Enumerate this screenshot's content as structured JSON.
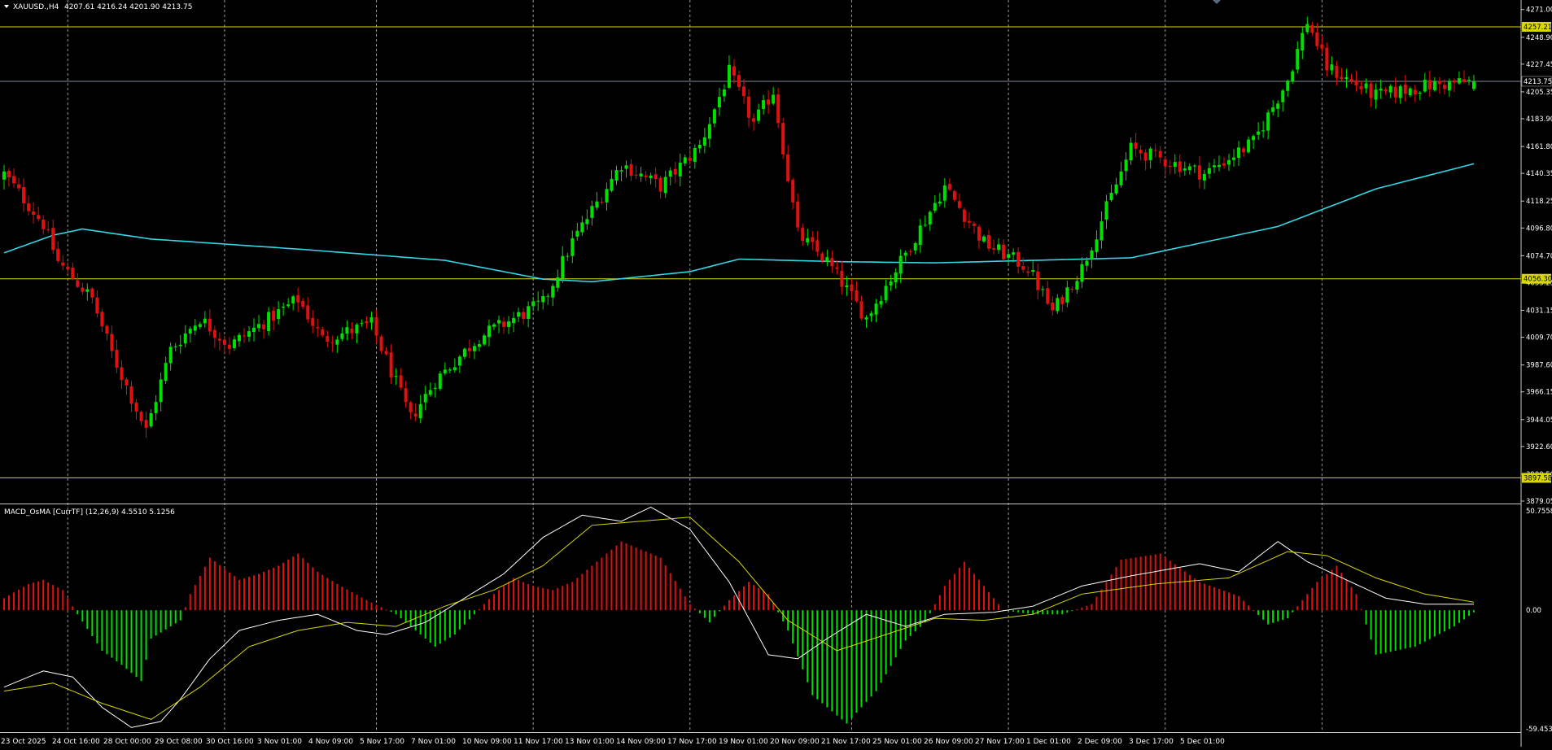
{
  "symbol_label": "XAUUSD.,H4",
  "ohlc_label": "4207.61 4216.24 4201.90 4213.75",
  "indicator_label": "MACD_OsMA [CurrTF] (12,26,9) 4.5510 5.1256",
  "colors": {
    "background": "#000000",
    "bull": "#00e000",
    "bear": "#e01010",
    "grid": "#9a9a9a",
    "moving_average": "#33d6e6",
    "level_line": "#d8d800",
    "bid_line": "#7f8a9c",
    "macd_line": "#ffffff",
    "signal_line": "#d8d800"
  },
  "chart_data": [
    {
      "type": "candlestick",
      "title": "XAUUSD.,H4",
      "y_ticks": [
        "4271.00",
        "4248.90",
        "4227.45",
        "4205.35",
        "4183.90",
        "4161.80",
        "4140.35",
        "4118.25",
        "4096.80",
        "4074.70",
        "4053.25",
        "4031.15",
        "4009.70",
        "3987.60",
        "3966.15",
        "3944.05",
        "3922.60",
        "3900.50",
        "3879.05"
      ],
      "ylim": [
        3879.05,
        4276.0
      ],
      "horizontal_levels": [
        {
          "label": "4257.21",
          "value": 4257.21
        },
        {
          "label": "4056.30",
          "value": 4056.3
        },
        {
          "label": "3897.58",
          "value": 3897.58
        }
      ],
      "current_price": {
        "label": "4213.75",
        "value": 4213.75
      },
      "moving_average_keypoints": [
        [
          0,
          4077
        ],
        [
          10,
          4091
        ],
        [
          16,
          4096
        ],
        [
          30,
          4088
        ],
        [
          60,
          4080
        ],
        [
          90,
          4071
        ],
        [
          110,
          4056
        ],
        [
          120,
          4054
        ],
        [
          140,
          4062
        ],
        [
          150,
          4072
        ],
        [
          170,
          4070
        ],
        [
          190,
          4069
        ],
        [
          210,
          4071
        ],
        [
          230,
          4073
        ],
        [
          260,
          4098
        ],
        [
          280,
          4128
        ],
        [
          300,
          4148
        ]
      ],
      "closes_keypoints": [
        [
          0,
          4140
        ],
        [
          8,
          4100
        ],
        [
          11,
          4070
        ],
        [
          18,
          4040
        ],
        [
          22,
          3997
        ],
        [
          29,
          3935
        ],
        [
          34,
          4000
        ],
        [
          40,
          4025
        ],
        [
          46,
          4003
        ],
        [
          60,
          4040
        ],
        [
          65,
          4008
        ],
        [
          75,
          4020
        ],
        [
          83,
          3945
        ],
        [
          88,
          3975
        ],
        [
          97,
          4010
        ],
        [
          110,
          4037
        ],
        [
          116,
          4086
        ],
        [
          126,
          4148
        ],
        [
          134,
          4130
        ],
        [
          142,
          4162
        ],
        [
          148,
          4221
        ],
        [
          153,
          4180
        ],
        [
          157,
          4206
        ],
        [
          162,
          4092
        ],
        [
          168,
          4070
        ],
        [
          176,
          4025
        ],
        [
          183,
          4070
        ],
        [
          192,
          4130
        ],
        [
          200,
          4085
        ],
        [
          209,
          4065
        ],
        [
          214,
          4030
        ],
        [
          220,
          4065
        ],
        [
          230,
          4160
        ],
        [
          245,
          4140
        ],
        [
          255,
          4165
        ],
        [
          262,
          4215
        ],
        [
          266,
          4262
        ],
        [
          270,
          4225
        ],
        [
          280,
          4202
        ],
        [
          290,
          4210
        ],
        [
          300,
          4213.75
        ]
      ],
      "x_tick_labels": [
        "23 Oct 2025",
        "24 Oct 16:00",
        "28 Oct 00:00",
        "29 Oct 08:00",
        "30 Oct 16:00",
        "3 Nov 01:00",
        "4 Nov 09:00",
        "5 Nov 17:00",
        "7 Nov 01:00",
        "10 Nov 09:00",
        "11 Nov 17:00",
        "13 Nov 01:00",
        "14 Nov 09:00",
        "17 Nov 17:00",
        "19 Nov 01:00",
        "20 Nov 09:00",
        "21 Nov 17:00",
        "25 Nov 01:00",
        "26 Nov 09:00",
        "27 Nov 17:00",
        "1 Dec 01:00",
        "2 Dec 09:00",
        "3 Dec 17:00",
        "5 Dec 01:00"
      ]
    },
    {
      "type": "macd-histogram",
      "title": "MACD_OsMA [CurrTF] (12,26,9)",
      "y_ticks": [
        "50.7558",
        "0.00",
        "-59.4533"
      ],
      "ylim": [
        -59.4533,
        50.7558
      ],
      "histogram_keypoints": [
        [
          0,
          6
        ],
        [
          5,
          13
        ],
        [
          8,
          15
        ],
        [
          12,
          10
        ],
        [
          15,
          -2
        ],
        [
          20,
          -20
        ],
        [
          24,
          -27
        ],
        [
          28,
          -35
        ],
        [
          30,
          -14
        ],
        [
          36,
          -5
        ],
        [
          38,
          8
        ],
        [
          42,
          26
        ],
        [
          48,
          15
        ],
        [
          52,
          18
        ],
        [
          56,
          22
        ],
        [
          60,
          28
        ],
        [
          64,
          19
        ],
        [
          68,
          13
        ],
        [
          74,
          5
        ],
        [
          80,
          -2
        ],
        [
          84,
          -10
        ],
        [
          88,
          -18
        ],
        [
          92,
          -12
        ],
        [
          96,
          -2
        ],
        [
          100,
          8
        ],
        [
          104,
          16
        ],
        [
          108,
          12
        ],
        [
          112,
          10
        ],
        [
          116,
          14
        ],
        [
          120,
          22
        ],
        [
          126,
          34
        ],
        [
          134,
          26
        ],
        [
          140,
          3
        ],
        [
          144,
          -6
        ],
        [
          148,
          5
        ],
        [
          152,
          14
        ],
        [
          156,
          8
        ],
        [
          160,
          -10
        ],
        [
          165,
          -42
        ],
        [
          172,
          -56
        ],
        [
          178,
          -40
        ],
        [
          184,
          -15
        ],
        [
          188,
          -6
        ],
        [
          192,
          12
        ],
        [
          196,
          24
        ],
        [
          200,
          12
        ],
        [
          204,
          0
        ],
        [
          210,
          -2
        ],
        [
          216,
          -2
        ],
        [
          222,
          3
        ],
        [
          228,
          25
        ],
        [
          236,
          28
        ],
        [
          244,
          14
        ],
        [
          252,
          7
        ],
        [
          258,
          -7
        ],
        [
          262,
          -4
        ],
        [
          268,
          14
        ],
        [
          272,
          22
        ],
        [
          276,
          8
        ],
        [
          280,
          -22
        ],
        [
          288,
          -18
        ],
        [
          296,
          -8
        ],
        [
          300,
          -1
        ]
      ],
      "macd_keypoints": [
        [
          0,
          -38
        ],
        [
          8,
          -30
        ],
        [
          14,
          -33
        ],
        [
          20,
          -48
        ],
        [
          26,
          -58
        ],
        [
          32,
          -55
        ],
        [
          36,
          -44
        ],
        [
          42,
          -24
        ],
        [
          48,
          -10
        ],
        [
          56,
          -5
        ],
        [
          64,
          -2
        ],
        [
          72,
          -10
        ],
        [
          78,
          -12
        ],
        [
          86,
          -6
        ],
        [
          94,
          6
        ],
        [
          102,
          18
        ],
        [
          110,
          36
        ],
        [
          118,
          47
        ],
        [
          126,
          44
        ],
        [
          132,
          51
        ],
        [
          140,
          40
        ],
        [
          148,
          14
        ],
        [
          156,
          -22
        ],
        [
          162,
          -24
        ],
        [
          168,
          -14
        ],
        [
          176,
          -2
        ],
        [
          184,
          -8
        ],
        [
          192,
          -2
        ],
        [
          202,
          -1
        ],
        [
          210,
          2
        ],
        [
          220,
          12
        ],
        [
          230,
          17
        ],
        [
          244,
          23
        ],
        [
          252,
          19
        ],
        [
          260,
          34
        ],
        [
          266,
          24
        ],
        [
          274,
          15
        ],
        [
          282,
          6
        ],
        [
          290,
          3
        ],
        [
          300,
          3
        ]
      ],
      "signal_keypoints": [
        [
          0,
          -40
        ],
        [
          10,
          -36
        ],
        [
          20,
          -46
        ],
        [
          30,
          -54
        ],
        [
          40,
          -38
        ],
        [
          50,
          -18
        ],
        [
          60,
          -10
        ],
        [
          70,
          -6
        ],
        [
          80,
          -8
        ],
        [
          90,
          2
        ],
        [
          100,
          10
        ],
        [
          110,
          22
        ],
        [
          120,
          42
        ],
        [
          130,
          44
        ],
        [
          140,
          46
        ],
        [
          150,
          24
        ],
        [
          160,
          -5
        ],
        [
          170,
          -20
        ],
        [
          180,
          -12
        ],
        [
          190,
          -4
        ],
        [
          200,
          -5
        ],
        [
          210,
          -2
        ],
        [
          220,
          8
        ],
        [
          235,
          13
        ],
        [
          250,
          16
        ],
        [
          262,
          29
        ],
        [
          270,
          27
        ],
        [
          280,
          16
        ],
        [
          290,
          8
        ],
        [
          300,
          4
        ]
      ]
    }
  ]
}
